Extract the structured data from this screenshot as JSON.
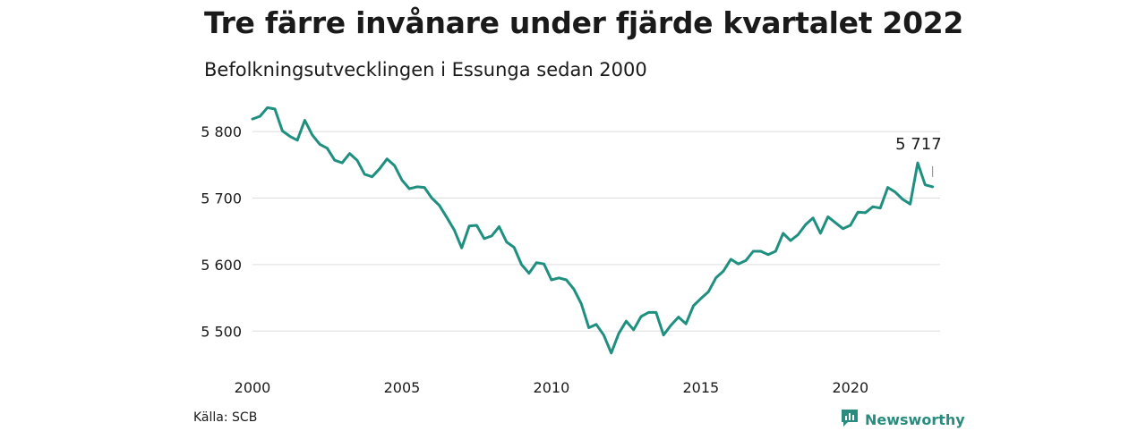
{
  "title": "Tre färre invånare under fjärde kvartalet 2022",
  "subtitle": "Befolkningsutvecklingen i Essunga sedan 2000",
  "source": "Källa: SCB",
  "brand": {
    "name": "Newsworthy",
    "icon": "newsworthy-logo-icon",
    "color": "#2a8c7f"
  },
  "chart_data": {
    "type": "line",
    "title": "Tre färre invånare under fjärde kvartalet 2022",
    "subtitle": "Befolkningsutvecklingen i Essunga sedan 2000",
    "xlabel": "",
    "ylabel": "",
    "grid": true,
    "line_color": "#1f8f80",
    "xlim": [
      2000,
      2023
    ],
    "ylim": [
      5460,
      5850
    ],
    "x_ticks": [
      2000,
      2005,
      2010,
      2015,
      2020
    ],
    "x_tick_labels": [
      "2000",
      "2005",
      "2010",
      "2015",
      "2020"
    ],
    "y_ticks": [
      5500,
      5600,
      5700,
      5800
    ],
    "y_tick_labels": [
      "5 500",
      "5 600",
      "5 700",
      "5 800"
    ],
    "end_label": "5 717",
    "series": [
      {
        "x": [
          2000.0,
          2000.25,
          2000.5,
          2000.75,
          2001.0,
          2001.25,
          2001.5,
          2001.75,
          2002.0,
          2002.25,
          2002.5,
          2002.75,
          2003.0,
          2003.25,
          2003.5,
          2003.75,
          2004.0,
          2004.25,
          2004.5,
          2004.75,
          2005.0,
          2005.25,
          2005.5,
          2005.75,
          2006.0,
          2006.25,
          2006.5,
          2006.75,
          2007.0,
          2007.25,
          2007.5,
          2007.75,
          2008.0,
          2008.25,
          2008.5,
          2008.75,
          2009.0,
          2009.25,
          2009.5,
          2009.75,
          2010.0,
          2010.25,
          2010.5,
          2010.75,
          2011.0,
          2011.25,
          2011.5,
          2011.75,
          2012.0,
          2012.25,
          2012.5,
          2012.75,
          2013.0,
          2013.25,
          2013.5,
          2013.75,
          2014.0,
          2014.25,
          2014.5,
          2014.75,
          2015.0,
          2015.25,
          2015.5,
          2015.75,
          2016.0,
          2016.25,
          2016.5,
          2016.75,
          2017.0,
          2017.25,
          2017.5,
          2017.75,
          2018.0,
          2018.25,
          2018.5,
          2018.75,
          2019.0,
          2019.25,
          2019.5,
          2019.75,
          2020.0,
          2020.25,
          2020.5,
          2020.75,
          2021.0,
          2021.25,
          2021.5,
          2021.75,
          2022.0,
          2022.25,
          2022.5,
          2022.75
        ],
        "values": [
          5819,
          5823,
          5836,
          5834,
          5801,
          5793,
          5787,
          5817,
          5795,
          5781,
          5775,
          5757,
          5753,
          5767,
          5757,
          5736,
          5732,
          5744,
          5759,
          5749,
          5727,
          5714,
          5717,
          5716,
          5700,
          5689,
          5671,
          5652,
          5625,
          5658,
          5659,
          5639,
          5643,
          5657,
          5634,
          5626,
          5600,
          5587,
          5603,
          5601,
          5577,
          5580,
          5577,
          5563,
          5541,
          5505,
          5510,
          5494,
          5467,
          5496,
          5515,
          5502,
          5522,
          5528,
          5528,
          5494,
          5509,
          5521,
          5511,
          5538,
          5549,
          5559,
          5580,
          5590,
          5608,
          5601,
          5606,
          5620,
          5620,
          5615,
          5620,
          5647,
          5636,
          5645,
          5660,
          5670,
          5647,
          5672,
          5663,
          5654,
          5659,
          5679,
          5678,
          5687,
          5685,
          5716,
          5709,
          5698,
          5691,
          5753,
          5720,
          5717
        ]
      }
    ]
  }
}
